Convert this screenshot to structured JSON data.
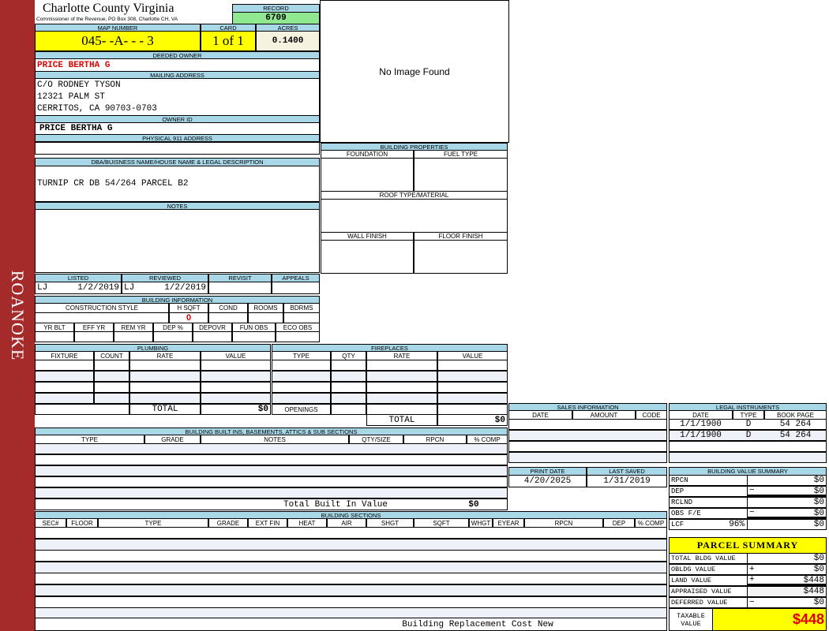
{
  "sidebar": {
    "label": "ROANOKE"
  },
  "header": {
    "title": "Charlotte County Virginia",
    "subtitle": "Commissioner of the Revenue, PO Box 308, Charlotte CH, VA",
    "record_label": "RECORD",
    "record": "6709"
  },
  "parcel": {
    "map_label": "MAP NUMBER",
    "card_label": "CARD",
    "acres_label": "ACRES",
    "map": "045- -A- - - 3",
    "card": "1 of 1",
    "acres": "0.1400"
  },
  "owner": {
    "deeded_label": "DEEDED OWNER",
    "deeded": "PRICE BERTHA G",
    "mailing_label": "MAILING ADDRESS",
    "mailing": [
      "C/O RODNEY TYSON",
      "12321 PALM ST",
      "CERRITOS, CA 90703-0703"
    ],
    "owner_id_label": "OWNER ID",
    "owner_id": "PRICE BERTHA G",
    "physical_label": "PHYSICAL 911 ADDRESS",
    "physical": ""
  },
  "legal": {
    "label": "DBA/BUISNESS NAME/HOUSE NAME & LEGAL DESCRIPTION",
    "value": "TURNIP CR   DB 54/264 PARCEL B2",
    "notes_label": "NOTES"
  },
  "image": {
    "text": "No Image Found"
  },
  "props": {
    "title": "BUILDING PROPERTIES",
    "foundation": "FOUNDATION",
    "fuel": "FUEL TYPE",
    "roof": "ROOF TYPE/MATERIAL",
    "wall": "WALL FINISH",
    "floor": "FLOOR FINISH"
  },
  "review": {
    "listed_label": "LISTED",
    "reviewed_label": "REVIEWED",
    "revisit_label": "REVISIT",
    "appeals_label": "APPEALS",
    "listed_by": "LJ",
    "listed": "1/2/2019",
    "reviewed_by": "LJ",
    "reviewed": "1/2/2019"
  },
  "bldg_info": {
    "title": "BUILDING INFORMATION",
    "cols1": [
      "CONSTRUCTION STYLE",
      "H SQFT",
      "COND",
      "ROOMS",
      "BDRMS"
    ],
    "hsqft": "0",
    "cols2": [
      "YR BLT",
      "EFF YR",
      "REM YR",
      "DEP %",
      "DEPOVR",
      "FUN OBS",
      "ECO OBS"
    ]
  },
  "plumbing": {
    "title": "PLUMBING",
    "cols": [
      "FIXTURE",
      "COUNT",
      "RATE",
      "VALUE"
    ],
    "total_label": "TOTAL",
    "total": "$0"
  },
  "fireplaces": {
    "title": "FIREPLACES",
    "cols": [
      "TYPE",
      "QTY",
      "RATE",
      "VALUE"
    ],
    "openings_label": "OPENINGS",
    "total_label": "TOTAL",
    "total": "$0"
  },
  "builtins": {
    "title": "BUILDING BUILT INS, BASEMENTS, ATTICS & SUB SECTIONS",
    "cols": [
      "TYPE",
      "GRADE",
      "NOTES",
      "QTY/SIZE",
      "RPCN",
      "% COMP"
    ],
    "total_label": "Total Built In Value",
    "total": "$0"
  },
  "sections": {
    "title": "BUILDING SECTIONS",
    "cols": [
      "SEC#",
      "FLOOR",
      "TYPE",
      "GRADE",
      "EXT FIN",
      "HEAT",
      "AIR",
      "SHGT",
      "SQFT",
      "WHGT",
      "EYEAR",
      "RPCN",
      "DEP",
      "% COMP"
    ],
    "footer_label": "Building Replacement Cost New"
  },
  "sales": {
    "title": "SALES INFORMATION",
    "cols": [
      "DATE",
      "AMOUNT",
      "CODE"
    ]
  },
  "instruments": {
    "title": "LEGAL INSTRUMENTS",
    "cols": [
      "DATE",
      "TYPE",
      "BOOK PAGE"
    ],
    "rows": [
      [
        "1/1/1900",
        "D",
        "54 264"
      ],
      [
        "1/1/1900",
        "D",
        "54 264"
      ]
    ]
  },
  "dates": {
    "print_label": "PRINT DATE",
    "saved_label": "LAST SAVED",
    "print": "4/20/2025",
    "saved": "1/31/2019"
  },
  "value_summary": {
    "title": "BUILDING VALUE SUMMARY",
    "rows": [
      {
        "label": "RPCN",
        "sign": "",
        "value": "$0"
      },
      {
        "label": "DEP",
        "sign": "−",
        "value": "$0"
      },
      {
        "label": "RCLND",
        "sign": "",
        "value": "$0"
      },
      {
        "label": "OBS F/E",
        "sign": "−",
        "value": "$0"
      },
      {
        "label": "LCF",
        "pct": "96%",
        "sign": "",
        "value": "$0"
      }
    ]
  },
  "parcel_summary": {
    "title": "PARCEL SUMMARY",
    "rows": [
      {
        "label": "TOTAL BLDG VALUE",
        "sign": "",
        "value": "$0"
      },
      {
        "label": "OBLDG VALUE",
        "sign": "+",
        "value": "$0"
      },
      {
        "label": "LAND VALUE",
        "sign": "+",
        "value": "$448"
      },
      {
        "label": "APPRAISED VALUE",
        "sign": "",
        "value": "$448"
      },
      {
        "label": "DEFERRED VALUE",
        "sign": "−",
        "value": "$0"
      }
    ],
    "taxable_label": "TAXABLE VALUE",
    "taxable": "$448"
  },
  "colors": {
    "header_blue": "#a8d8e8",
    "record_green": "#90e890",
    "highlight_yellow": "#ffff00",
    "sidebar_red": "#a52a2a",
    "owner_red": "#e00000"
  }
}
